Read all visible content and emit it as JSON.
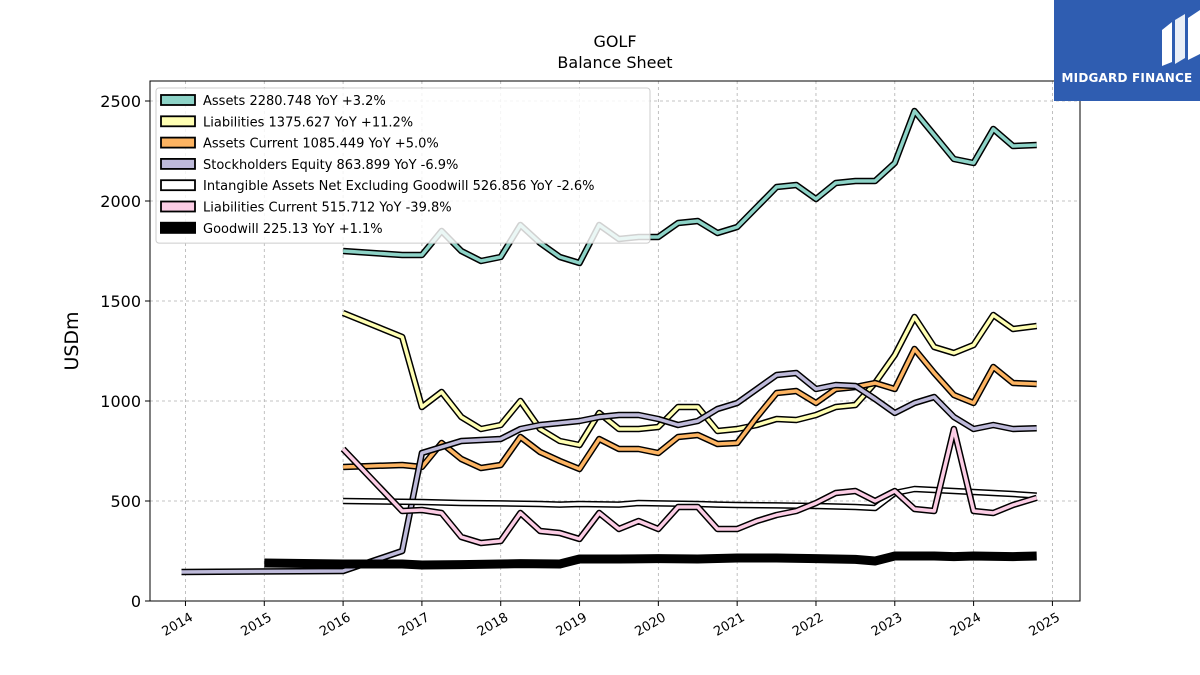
{
  "chart_data": {
    "type": "line",
    "title": "GOLF",
    "subtitle": "Balance  Sheet",
    "ylabel": "USDm",
    "xlabel": "",
    "ylim": [
      0,
      2600
    ],
    "xlim": [
      2013.55,
      2025.35
    ],
    "yticks": [
      0,
      500,
      1000,
      1500,
      2000,
      2500
    ],
    "xticks": [
      2014,
      2015,
      2016,
      2017,
      2018,
      2019,
      2020,
      2021,
      2022,
      2023,
      2024,
      2025
    ],
    "grid": true,
    "legend_position": "top-left",
    "series": [
      {
        "name": "Assets  2280.748 YoY +3.2%",
        "color": "#8dd3c7",
        "points": [
          [
            2016.0,
            1750
          ],
          [
            2016.75,
            1730
          ],
          [
            2017.0,
            1730
          ],
          [
            2017.25,
            1850
          ],
          [
            2017.5,
            1750
          ],
          [
            2017.75,
            1700
          ],
          [
            2018.0,
            1720
          ],
          [
            2018.25,
            1880
          ],
          [
            2018.5,
            1790
          ],
          [
            2018.75,
            1720
          ],
          [
            2019.0,
            1690
          ],
          [
            2019.25,
            1880
          ],
          [
            2019.5,
            1810
          ],
          [
            2019.75,
            1820
          ],
          [
            2020.0,
            1820
          ],
          [
            2020.25,
            1890
          ],
          [
            2020.5,
            1900
          ],
          [
            2020.75,
            1840
          ],
          [
            2021.0,
            1870
          ],
          [
            2021.25,
            1970
          ],
          [
            2021.5,
            2070
          ],
          [
            2021.75,
            2080
          ],
          [
            2022.0,
            2010
          ],
          [
            2022.25,
            2090
          ],
          [
            2022.5,
            2100
          ],
          [
            2022.75,
            2100
          ],
          [
            2023.0,
            2190
          ],
          [
            2023.25,
            2450
          ],
          [
            2023.5,
            2330
          ],
          [
            2023.75,
            2210
          ],
          [
            2024.0,
            2190
          ],
          [
            2024.25,
            2360
          ],
          [
            2024.5,
            2275
          ],
          [
            2024.8,
            2280
          ]
        ]
      },
      {
        "name": "Liabilities  1375.627 YoY +11.2%",
        "color": "#ffffb3",
        "points": [
          [
            2016.0,
            1440
          ],
          [
            2016.75,
            1320
          ],
          [
            2017.0,
            970
          ],
          [
            2017.25,
            1045
          ],
          [
            2017.5,
            920
          ],
          [
            2017.75,
            860
          ],
          [
            2018.0,
            880
          ],
          [
            2018.25,
            1000
          ],
          [
            2018.5,
            860
          ],
          [
            2018.75,
            800
          ],
          [
            2019.0,
            780
          ],
          [
            2019.25,
            940
          ],
          [
            2019.5,
            860
          ],
          [
            2019.75,
            860
          ],
          [
            2020.0,
            870
          ],
          [
            2020.25,
            970
          ],
          [
            2020.5,
            970
          ],
          [
            2020.75,
            850
          ],
          [
            2021.0,
            860
          ],
          [
            2021.25,
            880
          ],
          [
            2021.5,
            910
          ],
          [
            2021.75,
            905
          ],
          [
            2022.0,
            930
          ],
          [
            2022.25,
            970
          ],
          [
            2022.5,
            980
          ],
          [
            2022.75,
            1090
          ],
          [
            2023.0,
            1230
          ],
          [
            2023.25,
            1420
          ],
          [
            2023.5,
            1270
          ],
          [
            2023.75,
            1240
          ],
          [
            2024.0,
            1280
          ],
          [
            2024.25,
            1430
          ],
          [
            2024.5,
            1360
          ],
          [
            2024.8,
            1375
          ]
        ]
      },
      {
        "name": "Assets Current  1085.449 YoY +5.0%",
        "color": "#fdb462",
        "points": [
          [
            2016.0,
            670
          ],
          [
            2016.75,
            680
          ],
          [
            2017.0,
            670
          ],
          [
            2017.25,
            790
          ],
          [
            2017.5,
            710
          ],
          [
            2017.75,
            665
          ],
          [
            2018.0,
            680
          ],
          [
            2018.25,
            820
          ],
          [
            2018.5,
            745
          ],
          [
            2018.75,
            700
          ],
          [
            2019.0,
            660
          ],
          [
            2019.25,
            810
          ],
          [
            2019.5,
            760
          ],
          [
            2019.75,
            760
          ],
          [
            2020.0,
            740
          ],
          [
            2020.25,
            820
          ],
          [
            2020.5,
            830
          ],
          [
            2020.75,
            785
          ],
          [
            2021.0,
            790
          ],
          [
            2021.25,
            920
          ],
          [
            2021.5,
            1040
          ],
          [
            2021.75,
            1050
          ],
          [
            2022.0,
            990
          ],
          [
            2022.25,
            1060
          ],
          [
            2022.5,
            1070
          ],
          [
            2022.75,
            1090
          ],
          [
            2023.0,
            1060
          ],
          [
            2023.25,
            1260
          ],
          [
            2023.5,
            1140
          ],
          [
            2023.75,
            1030
          ],
          [
            2024.0,
            990
          ],
          [
            2024.25,
            1170
          ],
          [
            2024.5,
            1090
          ],
          [
            2024.8,
            1085
          ]
        ]
      },
      {
        "name": "Stockholders Equity  863.899 YoY -6.9%",
        "color": "#bebada",
        "points": [
          [
            2013.95,
            145
          ],
          [
            2016.0,
            150
          ],
          [
            2016.75,
            250
          ],
          [
            2017.0,
            740
          ],
          [
            2017.25,
            770
          ],
          [
            2017.5,
            800
          ],
          [
            2017.75,
            805
          ],
          [
            2018.0,
            810
          ],
          [
            2018.25,
            860
          ],
          [
            2018.5,
            880
          ],
          [
            2018.75,
            890
          ],
          [
            2019.0,
            900
          ],
          [
            2019.25,
            920
          ],
          [
            2019.5,
            930
          ],
          [
            2019.75,
            930
          ],
          [
            2020.0,
            910
          ],
          [
            2020.25,
            880
          ],
          [
            2020.5,
            900
          ],
          [
            2020.75,
            960
          ],
          [
            2021.0,
            990
          ],
          [
            2021.25,
            1060
          ],
          [
            2021.5,
            1130
          ],
          [
            2021.75,
            1140
          ],
          [
            2022.0,
            1060
          ],
          [
            2022.25,
            1080
          ],
          [
            2022.5,
            1075
          ],
          [
            2022.75,
            1010
          ],
          [
            2023.0,
            940
          ],
          [
            2023.25,
            990
          ],
          [
            2023.5,
            1020
          ],
          [
            2023.75,
            920
          ],
          [
            2024.0,
            860
          ],
          [
            2024.25,
            880
          ],
          [
            2024.5,
            860
          ],
          [
            2024.8,
            864
          ]
        ]
      },
      {
        "name": "Intangible Assets Net Excluding Goodwill  526.856 YoY -2.6%",
        "color": "#ffffff",
        "points": [
          [
            2016.0,
            500
          ],
          [
            2017.0,
            495
          ],
          [
            2017.5,
            490
          ],
          [
            2018.0,
            488
          ],
          [
            2018.5,
            485
          ],
          [
            2018.75,
            482
          ],
          [
            2019.0,
            485
          ],
          [
            2019.5,
            482
          ],
          [
            2019.75,
            490
          ],
          [
            2020.0,
            488
          ],
          [
            2020.5,
            485
          ],
          [
            2020.75,
            482
          ],
          [
            2021.0,
            480
          ],
          [
            2021.5,
            478
          ],
          [
            2022.0,
            475
          ],
          [
            2022.5,
            470
          ],
          [
            2022.75,
            465
          ],
          [
            2023.0,
            540
          ],
          [
            2023.25,
            560
          ],
          [
            2023.5,
            555
          ],
          [
            2023.75,
            550
          ],
          [
            2024.0,
            545
          ],
          [
            2024.5,
            535
          ],
          [
            2024.8,
            527
          ]
        ]
      },
      {
        "name": "Liabilities Current  515.712 YoY -39.8%",
        "color": "#fccde5",
        "points": [
          [
            2016.0,
            760
          ],
          [
            2016.75,
            450
          ],
          [
            2017.0,
            455
          ],
          [
            2017.25,
            440
          ],
          [
            2017.5,
            320
          ],
          [
            2017.75,
            290
          ],
          [
            2018.0,
            300
          ],
          [
            2018.25,
            440
          ],
          [
            2018.5,
            350
          ],
          [
            2018.75,
            340
          ],
          [
            2019.0,
            310
          ],
          [
            2019.25,
            440
          ],
          [
            2019.5,
            360
          ],
          [
            2019.75,
            400
          ],
          [
            2020.0,
            360
          ],
          [
            2020.25,
            470
          ],
          [
            2020.5,
            470
          ],
          [
            2020.75,
            360
          ],
          [
            2021.0,
            360
          ],
          [
            2021.25,
            400
          ],
          [
            2021.5,
            430
          ],
          [
            2021.75,
            450
          ],
          [
            2022.0,
            490
          ],
          [
            2022.25,
            540
          ],
          [
            2022.5,
            550
          ],
          [
            2022.75,
            500
          ],
          [
            2023.0,
            550
          ],
          [
            2023.25,
            460
          ],
          [
            2023.5,
            450
          ],
          [
            2023.75,
            860
          ],
          [
            2024.0,
            450
          ],
          [
            2024.25,
            440
          ],
          [
            2024.5,
            480
          ],
          [
            2024.8,
            516
          ]
        ]
      },
      {
        "name": "Goodwill  225.13 YoY +1.1%",
        "color": "#000000",
        "points": [
          [
            2015.0,
            190
          ],
          [
            2016.0,
            185
          ],
          [
            2016.75,
            185
          ],
          [
            2017.0,
            180
          ],
          [
            2017.5,
            182
          ],
          [
            2018.0,
            185
          ],
          [
            2018.25,
            187
          ],
          [
            2018.75,
            185
          ],
          [
            2019.0,
            210
          ],
          [
            2019.5,
            210
          ],
          [
            2020.0,
            212
          ],
          [
            2020.5,
            210
          ],
          [
            2021.0,
            215
          ],
          [
            2021.5,
            215
          ],
          [
            2022.0,
            212
          ],
          [
            2022.5,
            208
          ],
          [
            2022.75,
            200
          ],
          [
            2023.0,
            225
          ],
          [
            2023.5,
            225
          ],
          [
            2023.75,
            222
          ],
          [
            2024.0,
            225
          ],
          [
            2024.5,
            222
          ],
          [
            2024.8,
            225
          ]
        ]
      }
    ]
  },
  "logo": {
    "brand_name": "MIDGARD FINANCE"
  }
}
